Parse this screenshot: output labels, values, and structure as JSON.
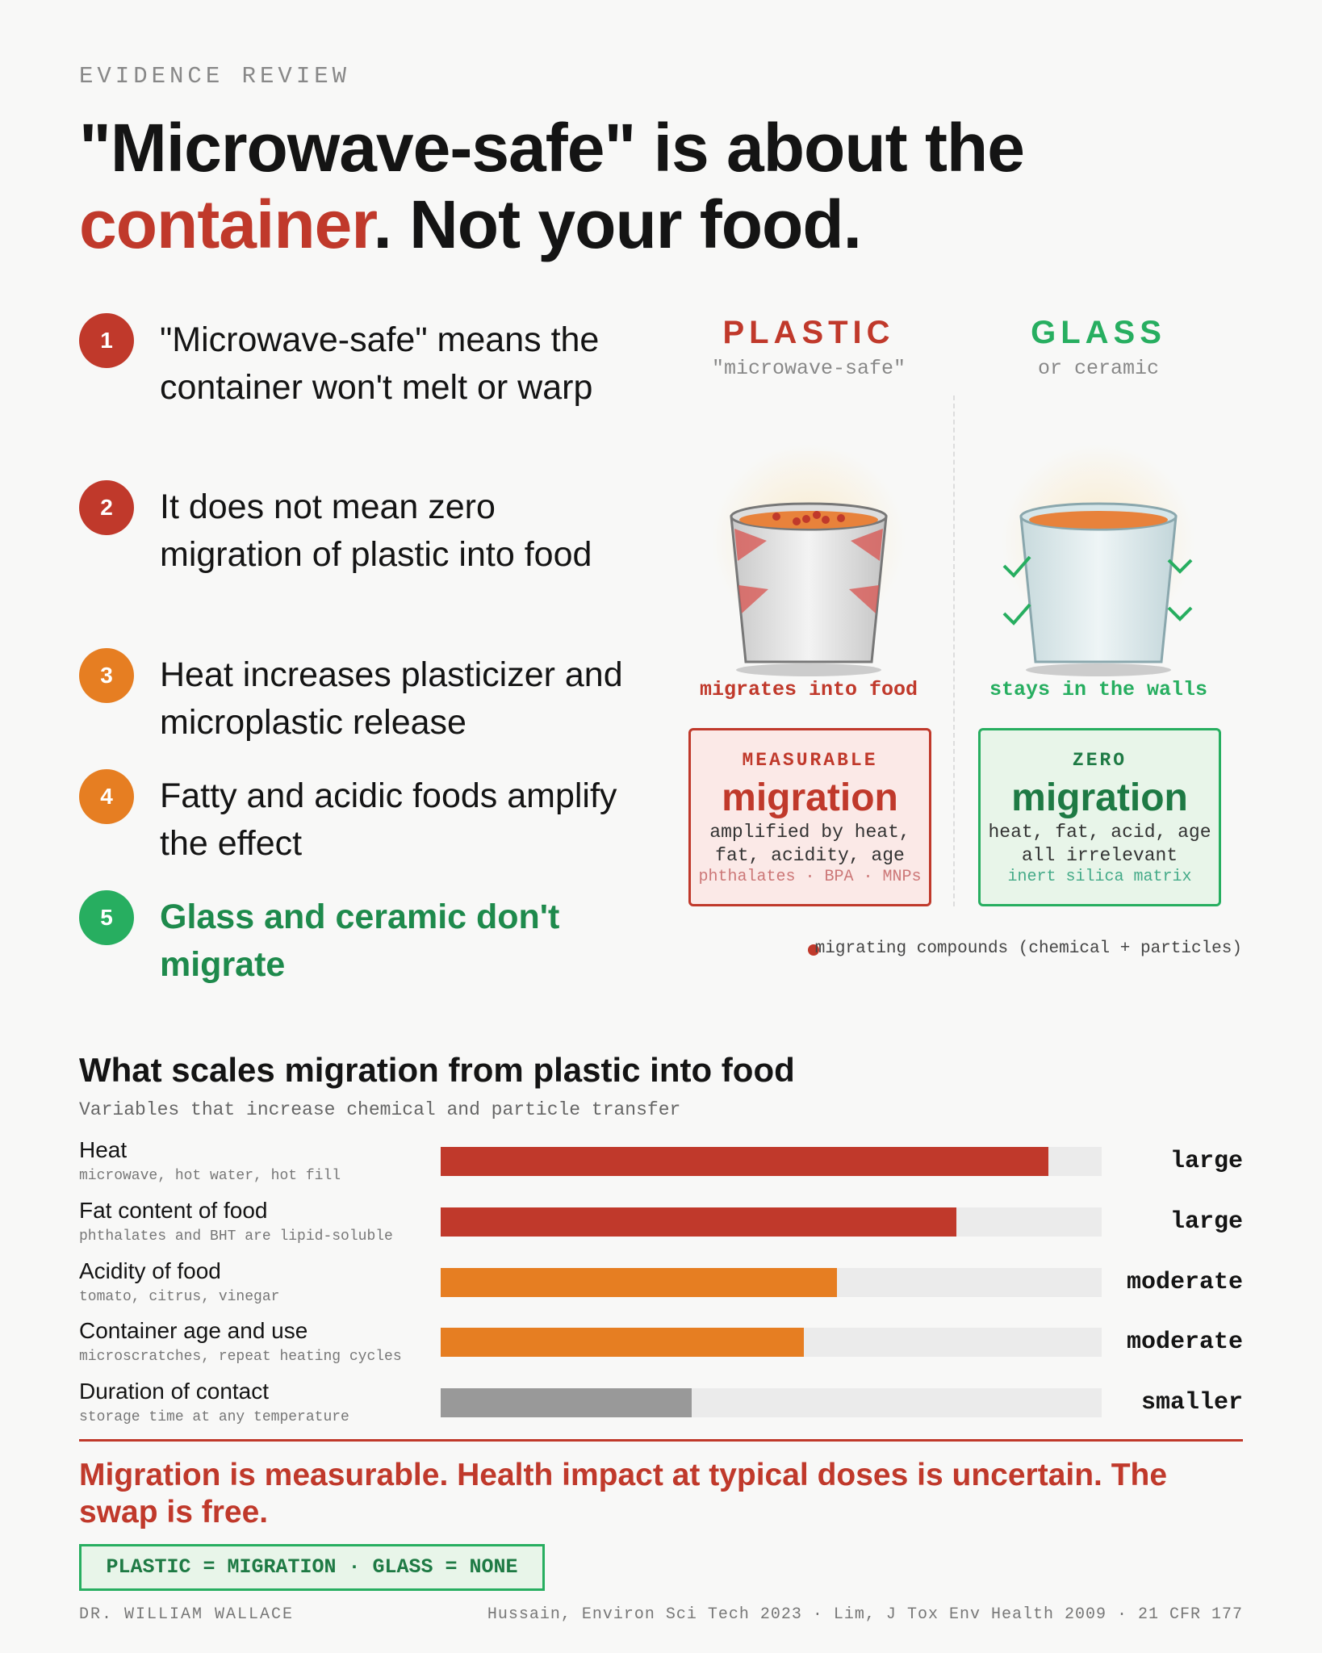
{
  "header": {
    "kicker": "EVIDENCE REVIEW",
    "title_line1": "\"Microwave-safe\" is about the",
    "title_highlight": "container",
    "title_rest": ". Not your food."
  },
  "points": [
    {
      "number": 1,
      "text": "\"Microwave-safe\" means the container won't melt or warp",
      "color": "#c0392b"
    },
    {
      "number": 2,
      "text": "It does not mean zero migration of plastic into food",
      "color": "#c0392b"
    },
    {
      "number": 3,
      "text": "Heat increases plasticizer and microplastic release",
      "color": "#e67e22"
    },
    {
      "number": 4,
      "text": "Fatty and acidic foods amplify the effect",
      "color": "#e67e22"
    },
    {
      "number": 5,
      "text": "Glass and ceramic don't migrate",
      "color": "#27ae60"
    }
  ],
  "comparison": {
    "plastic": {
      "title": "PLASTIC",
      "subtitle": "\"microwave-safe\"",
      "caption": "migrates into food",
      "box_label": "MEASURABLE",
      "box_title": "migration",
      "box_lines": [
        "amplified by heat,",
        "fat, acidity, age"
      ],
      "box_note": "phthalates · BPA · MNPs"
    },
    "glass": {
      "title": "GLASS",
      "subtitle": "or ceramic",
      "caption": "stays in the walls",
      "box_label": "ZERO",
      "box_title": "migration",
      "box_lines": [
        "heat, fat, acid, age",
        "all irrelevant"
      ],
      "box_note": "inert silica matrix"
    },
    "legend": "migrating compounds (chemical + particles)"
  },
  "scaling": {
    "title": "What scales migration from plastic into food",
    "subtitle": "Variables that increase chemical and particle transfer",
    "xlim": [
      0,
      100
    ],
    "rows": [
      {
        "label": "Heat",
        "detail": "microwave, hot water, hot fill",
        "value": 92,
        "level": "large",
        "color": "#c0392b"
      },
      {
        "label": "Fat content of food",
        "detail": "phthalates and BHT are lipid-soluble",
        "value": 78,
        "level": "large",
        "color": "#c0392b"
      },
      {
        "label": "Acidity of food",
        "detail": "tomato, citrus, vinegar",
        "value": 60,
        "level": "moderate",
        "color": "#e67e22"
      },
      {
        "label": "Container age and use",
        "detail": "microscratches, repeat heating cycles",
        "value": 55,
        "level": "moderate",
        "color": "#e67e22"
      },
      {
        "label": "Duration of contact",
        "detail": "storage time at any temperature",
        "value": 38,
        "level": "smaller",
        "color": "#999999"
      }
    ]
  },
  "conclusion": "Migration is measurable. Health impact at typical doses is uncertain. The swap is free.",
  "tag": "PLASTIC = MIGRATION · GLASS = NONE",
  "footer": {
    "author": "DR. WILLIAM WALLACE",
    "sources": "Hussain, Environ Sci Tech 2023 · Lim, J Tox Env Health 2009 · 21 CFR 177"
  }
}
